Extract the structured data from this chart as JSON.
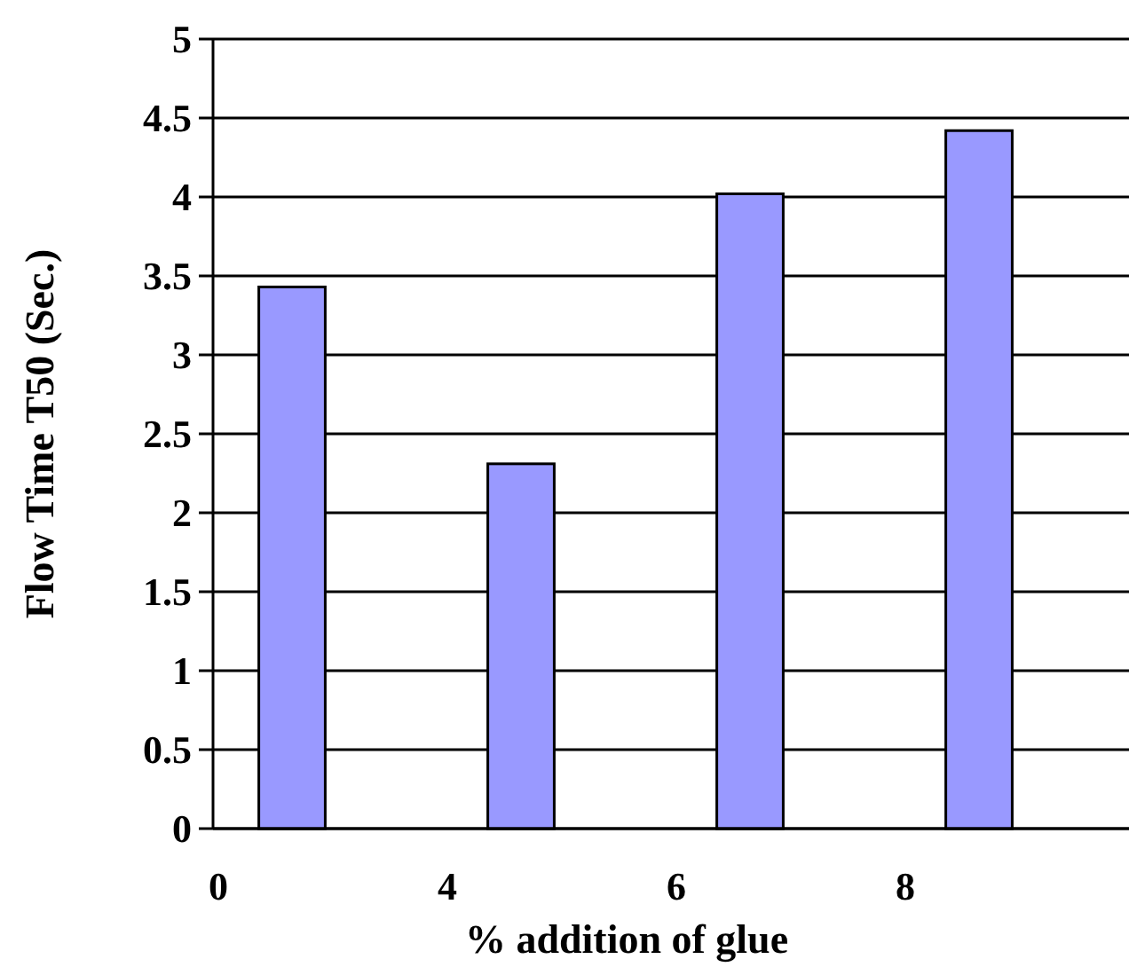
{
  "chart_data": {
    "type": "bar",
    "xlabel": "% addition of glue",
    "ylabel": "Flow Time T50 (Sec.)",
    "categories": [
      "0",
      "4",
      "6",
      "8"
    ],
    "values": [
      3.43,
      2.31,
      4.02,
      4.42
    ],
    "color": "#9999ff",
    "ylim": [
      0,
      5
    ],
    "yticks": [
      0,
      0.5,
      1,
      1.5,
      2,
      2.5,
      3,
      3.5,
      4,
      4.5,
      5
    ],
    "grid": "y"
  }
}
